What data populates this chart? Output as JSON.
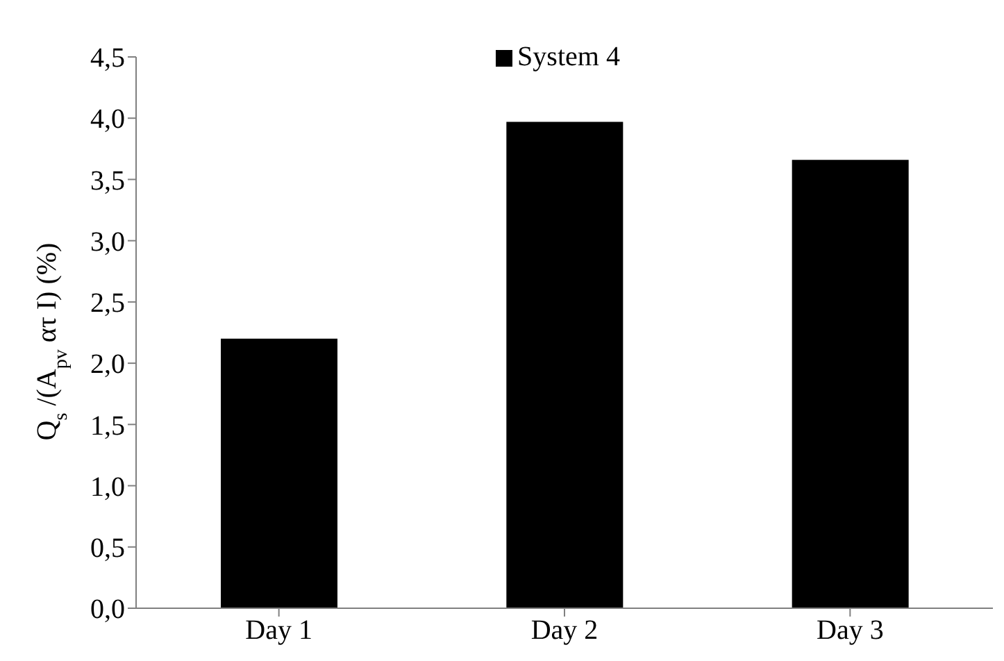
{
  "chart_data": {
    "type": "bar",
    "ylabel": "Q$_{s}$ /(A$_{pv}$ ατ I) (%)",
    "categories": [
      "Day 1",
      "Day 2",
      "Day 3"
    ],
    "series": [
      {
        "name": "System 4",
        "color": "#000000",
        "values": [
          2.2,
          3.97,
          3.66
        ]
      }
    ],
    "ylim": [
      0,
      4.5
    ],
    "yticks": [
      {
        "value": 0,
        "label": "0,0"
      },
      {
        "value": 0.5,
        "label": "0,5"
      },
      {
        "value": 1,
        "label": "1,0"
      },
      {
        "value": 1.5,
        "label": "1,5"
      },
      {
        "value": 2,
        "label": "2,0"
      },
      {
        "value": 2.5,
        "label": "2,5"
      },
      {
        "value": 3,
        "label": "3,0"
      },
      {
        "value": 3.5,
        "label": "3,5"
      },
      {
        "value": 4,
        "label": "4,0"
      },
      {
        "value": 4.5,
        "label": "4,5"
      }
    ],
    "grid": false,
    "legend": "top"
  }
}
